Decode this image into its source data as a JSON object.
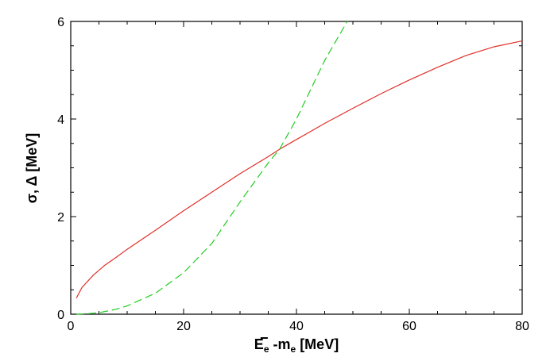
{
  "chart_data": {
    "type": "line",
    "title": "",
    "xlabel": "E",
    "xlabel_sub_main": "e",
    "xlabel_bar_text": "−",
    "xlabel_sep": " -m",
    "xlabel_sub2": "e",
    "xlabel_unit": " [MeV]",
    "ylabel": "σ, Δ [MeV]",
    "xlim": [
      0,
      80
    ],
    "ylim": [
      0,
      6
    ],
    "grid": false,
    "xticks": [
      0,
      20,
      40,
      60,
      80
    ],
    "yticks": [
      0,
      2,
      4,
      6
    ],
    "xtick_labels": [
      "0",
      "20",
      "40",
      "60",
      "80"
    ],
    "ytick_labels": [
      "0",
      "2",
      "4",
      "6"
    ],
    "series": [
      {
        "color": "#e0302a",
        "dash": "solid",
        "x": [
          1,
          2,
          4,
          6,
          8,
          10,
          15,
          20,
          25,
          30,
          35,
          37,
          40,
          45,
          50,
          55,
          60,
          65,
          70,
          75,
          80
        ],
        "y": [
          0.33,
          0.55,
          0.8,
          1.0,
          1.16,
          1.33,
          1.72,
          2.12,
          2.5,
          2.88,
          3.23,
          3.38,
          3.58,
          3.91,
          4.22,
          4.52,
          4.8,
          5.06,
          5.3,
          5.48,
          5.6
        ]
      },
      {
        "color": "#22cc22",
        "dash": "dashed",
        "x": [
          1,
          3,
          5,
          8,
          10,
          15,
          20,
          25,
          30,
          35,
          37,
          40,
          45,
          49
        ],
        "y": [
          0.0,
          0.01,
          0.03,
          0.1,
          0.17,
          0.43,
          0.85,
          1.45,
          2.3,
          3.1,
          3.38,
          4.0,
          5.2,
          6.0
        ]
      }
    ]
  }
}
